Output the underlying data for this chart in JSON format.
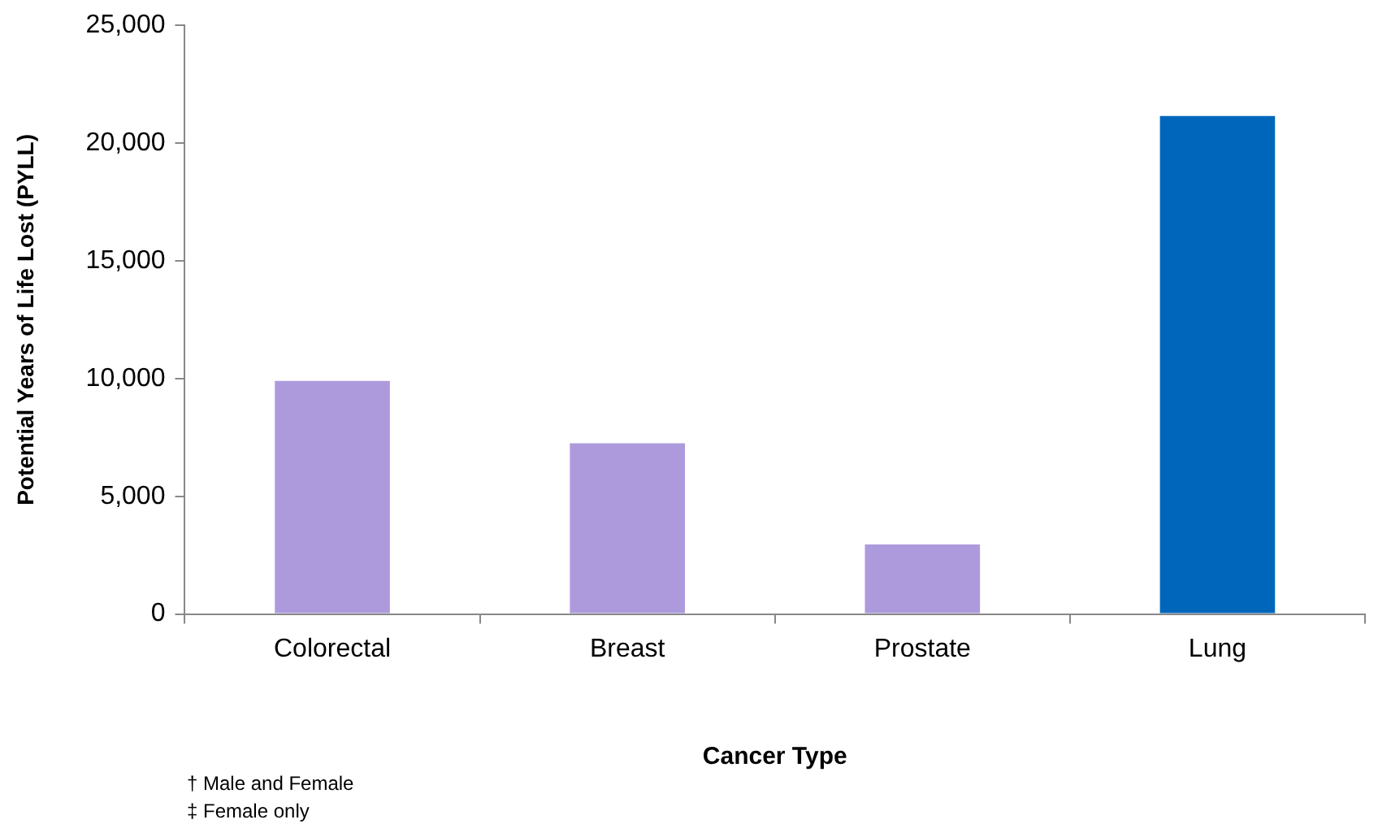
{
  "chart_data": {
    "type": "bar",
    "xlabel": "Cancer Type",
    "ylabel": "Potential Years of Life Lost (PYLL)",
    "categories": [
      "Colorectal",
      "Breast",
      "Prostate",
      "Lung"
    ],
    "values": [
      9900,
      7250,
      2950,
      21150
    ],
    "colors": [
      "#ad9add",
      "#ad9add",
      "#ad9add",
      "#0066bb"
    ],
    "ylim": [
      0,
      25000
    ],
    "yticks": [
      {
        "value": 0,
        "label": "0"
      },
      {
        "value": 5000,
        "label": "5,000"
      },
      {
        "value": 10000,
        "label": "10,000"
      },
      {
        "value": 15000,
        "label": "15,000"
      },
      {
        "value": 20000,
        "label": "20,000"
      },
      {
        "value": 25000,
        "label": "25,000"
      }
    ],
    "grid": false,
    "legend": false,
    "annotations": [
      "† Male and Female",
      "‡ Female only"
    ]
  }
}
